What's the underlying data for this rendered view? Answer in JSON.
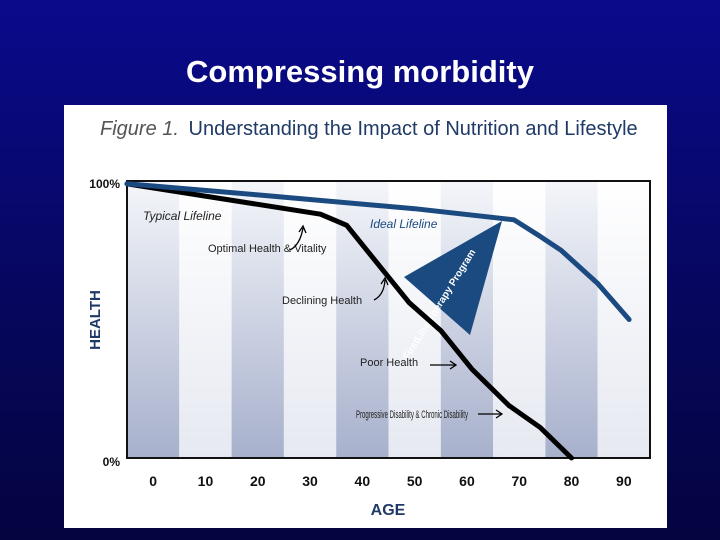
{
  "slide": {
    "title": "Compressing morbidity"
  },
  "chart_data": {
    "type": "line",
    "title_prefix": "Figure 1.",
    "title": "Understanding the Impact of Nutrition and Lifestyle",
    "xlabel": "AGE",
    "ylabel": "HEALTH",
    "xticks": [
      "0",
      "10",
      "20",
      "30",
      "40",
      "50",
      "60",
      "70",
      "80",
      "90"
    ],
    "yticks": [
      "0%",
      "100%"
    ],
    "xlim": [
      -5,
      95
    ],
    "ylim": [
      0,
      100
    ],
    "series": [
      {
        "name": "Typical Lifeline",
        "color": "#000000",
        "points": [
          [
            -5,
            99
          ],
          [
            32,
            88
          ],
          [
            37,
            84
          ],
          [
            43,
            70
          ],
          [
            49,
            56
          ],
          [
            55,
            46
          ],
          [
            61,
            32
          ],
          [
            68,
            19
          ],
          [
            74,
            11
          ],
          [
            80,
            0
          ]
        ]
      },
      {
        "name": "Ideal Lifeline",
        "color": "#1a4a80",
        "points": [
          [
            -5,
            99
          ],
          [
            20,
            95
          ],
          [
            50,
            90
          ],
          [
            69,
            86
          ],
          [
            74,
            80
          ],
          [
            78,
            75
          ],
          [
            85,
            63
          ],
          [
            91,
            50
          ]
        ]
      }
    ],
    "annotations": [
      {
        "text": "Optimal Health & Vitality"
      },
      {
        "text": "Declining Health"
      },
      {
        "text": "Poor Health"
      },
      {
        "text": "Progressive Disability & Chronic Disability"
      },
      {
        "text": "FirstLine Therapy Program"
      }
    ],
    "accent_color": "#1a4a80"
  }
}
